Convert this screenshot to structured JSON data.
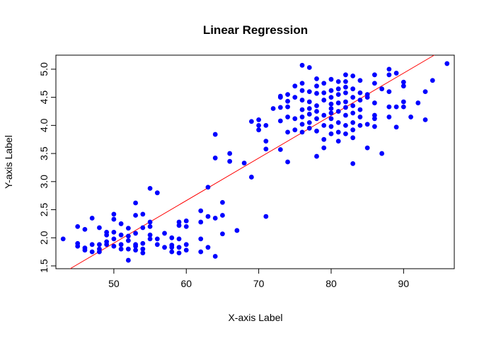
{
  "chart_data": {
    "type": "scatter",
    "title": "Linear Regression",
    "xlabel": "X-axis Label",
    "ylabel": "Y-axis Label",
    "xlim": [
      42,
      97
    ],
    "ylim": [
      1.45,
      5.25
    ],
    "x_ticks": [
      "50",
      "60",
      "70",
      "80",
      "90"
    ],
    "y_ticks": [
      "1.5",
      "2.0",
      "2.5",
      "3.0",
      "3.5",
      "4.0",
      "4.5",
      "5.0"
    ],
    "x_tick_values": [
      50,
      60,
      70,
      80,
      90
    ],
    "y_tick_values": [
      1.5,
      2.0,
      2.5,
      3.0,
      3.5,
      4.0,
      4.5,
      5.0
    ],
    "point_color": "#0000ff",
    "line_color": "#ff0000",
    "regression_line": {
      "intercept": -1.874,
      "slope": 0.0756
    },
    "points": [
      [
        43,
        1.98
      ],
      [
        45,
        2.2
      ],
      [
        45,
        1.9
      ],
      [
        45,
        1.85
      ],
      [
        46,
        2.15
      ],
      [
        46,
        1.82
      ],
      [
        46,
        1.78
      ],
      [
        47,
        2.35
      ],
      [
        47,
        1.88
      ],
      [
        47,
        1.75
      ],
      [
        48,
        2.18
      ],
      [
        48,
        1.88
      ],
      [
        48,
        1.8
      ],
      [
        48,
        1.75
      ],
      [
        49,
        2.05
      ],
      [
        49,
        1.93
      ],
      [
        49,
        1.88
      ],
      [
        49,
        2.1
      ],
      [
        50,
        2.42
      ],
      [
        50,
        2.33
      ],
      [
        50,
        2.1
      ],
      [
        50,
        1.98
      ],
      [
        50,
        1.85
      ],
      [
        51,
        2.25
      ],
      [
        51,
        2.05
      ],
      [
        51,
        1.88
      ],
      [
        51,
        1.8
      ],
      [
        52,
        2.17
      ],
      [
        52,
        2.03
      ],
      [
        52,
        1.95
      ],
      [
        52,
        1.8
      ],
      [
        52,
        1.6
      ],
      [
        53,
        2.62
      ],
      [
        53,
        2.4
      ],
      [
        53,
        2.08
      ],
      [
        53,
        1.88
      ],
      [
        53,
        1.85
      ],
      [
        53,
        1.78
      ],
      [
        54,
        2.42
      ],
      [
        54,
        2.18
      ],
      [
        54,
        1.9
      ],
      [
        54,
        1.8
      ],
      [
        54,
        1.73
      ],
      [
        55,
        2.88
      ],
      [
        55,
        2.28
      ],
      [
        55,
        2.2
      ],
      [
        55,
        2.05
      ],
      [
        55,
        1.98
      ],
      [
        56,
        2.8
      ],
      [
        56,
        1.98
      ],
      [
        56,
        1.88
      ],
      [
        57,
        2.08
      ],
      [
        57,
        1.83
      ],
      [
        58,
        2.0
      ],
      [
        58,
        1.87
      ],
      [
        58,
        1.83
      ],
      [
        58,
        1.75
      ],
      [
        59,
        2.28
      ],
      [
        59,
        2.22
      ],
      [
        59,
        1.98
      ],
      [
        59,
        1.83
      ],
      [
        59,
        1.73
      ],
      [
        60,
        2.3
      ],
      [
        60,
        2.2
      ],
      [
        60,
        1.88
      ],
      [
        60,
        1.78
      ],
      [
        62,
        2.48
      ],
      [
        62,
        2.28
      ],
      [
        62,
        1.98
      ],
      [
        62,
        1.75
      ],
      [
        63,
        2.9
      ],
      [
        63,
        2.38
      ],
      [
        63,
        1.83
      ],
      [
        64,
        3.84
      ],
      [
        64,
        3.42
      ],
      [
        64,
        2.35
      ],
      [
        64,
        1.67
      ],
      [
        65,
        2.63
      ],
      [
        65,
        2.4
      ],
      [
        65,
        2.07
      ],
      [
        66,
        3.5
      ],
      [
        66,
        3.36
      ],
      [
        67,
        2.13
      ],
      [
        68,
        3.33
      ],
      [
        69,
        4.07
      ],
      [
        69,
        3.08
      ],
      [
        70,
        4.1
      ],
      [
        70,
        4.0
      ],
      [
        70,
        3.92
      ],
      [
        71,
        4.0
      ],
      [
        71,
        3.72
      ],
      [
        71,
        3.58
      ],
      [
        71,
        2.38
      ],
      [
        72,
        4.3
      ],
      [
        73,
        4.52
      ],
      [
        73,
        4.5
      ],
      [
        73,
        4.32
      ],
      [
        73,
        4.08
      ],
      [
        73,
        3.57
      ],
      [
        74,
        4.55
      ],
      [
        74,
        4.43
      ],
      [
        74,
        4.33
      ],
      [
        74,
        4.15
      ],
      [
        74,
        3.88
      ],
      [
        74,
        3.35
      ],
      [
        75,
        4.7
      ],
      [
        75,
        4.5
      ],
      [
        75,
        4.12
      ],
      [
        75,
        3.92
      ],
      [
        76,
        5.07
      ],
      [
        76,
        4.75
      ],
      [
        76,
        4.62
      ],
      [
        76,
        4.45
      ],
      [
        76,
        4.28
      ],
      [
        76,
        4.15
      ],
      [
        76,
        4.02
      ],
      [
        76,
        3.88
      ],
      [
        77,
        5.03
      ],
      [
        77,
        4.6
      ],
      [
        77,
        4.42
      ],
      [
        77,
        4.3
      ],
      [
        77,
        4.2
      ],
      [
        77,
        4.05
      ],
      [
        77,
        3.95
      ],
      [
        78,
        4.83
      ],
      [
        78,
        4.7
      ],
      [
        78,
        4.57
      ],
      [
        78,
        4.35
      ],
      [
        78,
        4.25
      ],
      [
        78,
        4.12
      ],
      [
        78,
        3.9
      ],
      [
        78,
        3.45
      ],
      [
        79,
        4.75
      ],
      [
        79,
        4.58
      ],
      [
        79,
        4.45
      ],
      [
        79,
        4.18
      ],
      [
        79,
        4.0
      ],
      [
        79,
        3.75
      ],
      [
        79,
        3.6
      ],
      [
        80,
        4.82
      ],
      [
        80,
        4.62
      ],
      [
        80,
        4.5
      ],
      [
        80,
        4.38
      ],
      [
        80,
        4.3
      ],
      [
        80,
        4.22
      ],
      [
        80,
        4.12
      ],
      [
        80,
        3.98
      ],
      [
        80,
        3.85
      ],
      [
        81,
        4.78
      ],
      [
        81,
        4.65
      ],
      [
        81,
        4.55
      ],
      [
        81,
        4.4
      ],
      [
        81,
        4.25
      ],
      [
        81,
        4.05
      ],
      [
        81,
        3.88
      ],
      [
        81,
        3.72
      ],
      [
        82,
        4.9
      ],
      [
        82,
        4.78
      ],
      [
        82,
        4.68
      ],
      [
        82,
        4.58
      ],
      [
        82,
        4.42
      ],
      [
        82,
        4.32
      ],
      [
        82,
        4.18
      ],
      [
        82,
        4.0
      ],
      [
        82,
        3.85
      ],
      [
        83,
        4.88
      ],
      [
        83,
        4.65
      ],
      [
        83,
        4.5
      ],
      [
        83,
        4.35
      ],
      [
        83,
        4.22
      ],
      [
        83,
        4.05
      ],
      [
        83,
        3.92
      ],
      [
        83,
        3.78
      ],
      [
        83,
        3.32
      ],
      [
        84,
        4.8
      ],
      [
        84,
        4.58
      ],
      [
        84,
        4.45
      ],
      [
        84,
        4.28
      ],
      [
        84,
        4.15
      ],
      [
        84,
        4.0
      ],
      [
        85,
        4.55
      ],
      [
        85,
        4.5
      ],
      [
        85,
        4.02
      ],
      [
        85,
        3.6
      ],
      [
        86,
        4.9
      ],
      [
        86,
        4.75
      ],
      [
        86,
        4.4
      ],
      [
        86,
        4.18
      ],
      [
        86,
        4.12
      ],
      [
        86,
        3.98
      ],
      [
        87,
        3.5
      ],
      [
        87,
        4.65
      ],
      [
        88,
        5.0
      ],
      [
        88,
        4.9
      ],
      [
        88,
        4.6
      ],
      [
        88,
        4.33
      ],
      [
        88,
        4.15
      ],
      [
        89,
        4.93
      ],
      [
        89,
        4.33
      ],
      [
        89,
        3.97
      ],
      [
        90,
        4.77
      ],
      [
        90,
        4.7
      ],
      [
        90,
        4.42
      ],
      [
        90,
        4.33
      ],
      [
        91,
        4.15
      ],
      [
        92,
        4.4
      ],
      [
        93,
        4.6
      ],
      [
        93,
        4.1
      ],
      [
        94,
        4.8
      ],
      [
        96,
        5.1
      ]
    ]
  }
}
